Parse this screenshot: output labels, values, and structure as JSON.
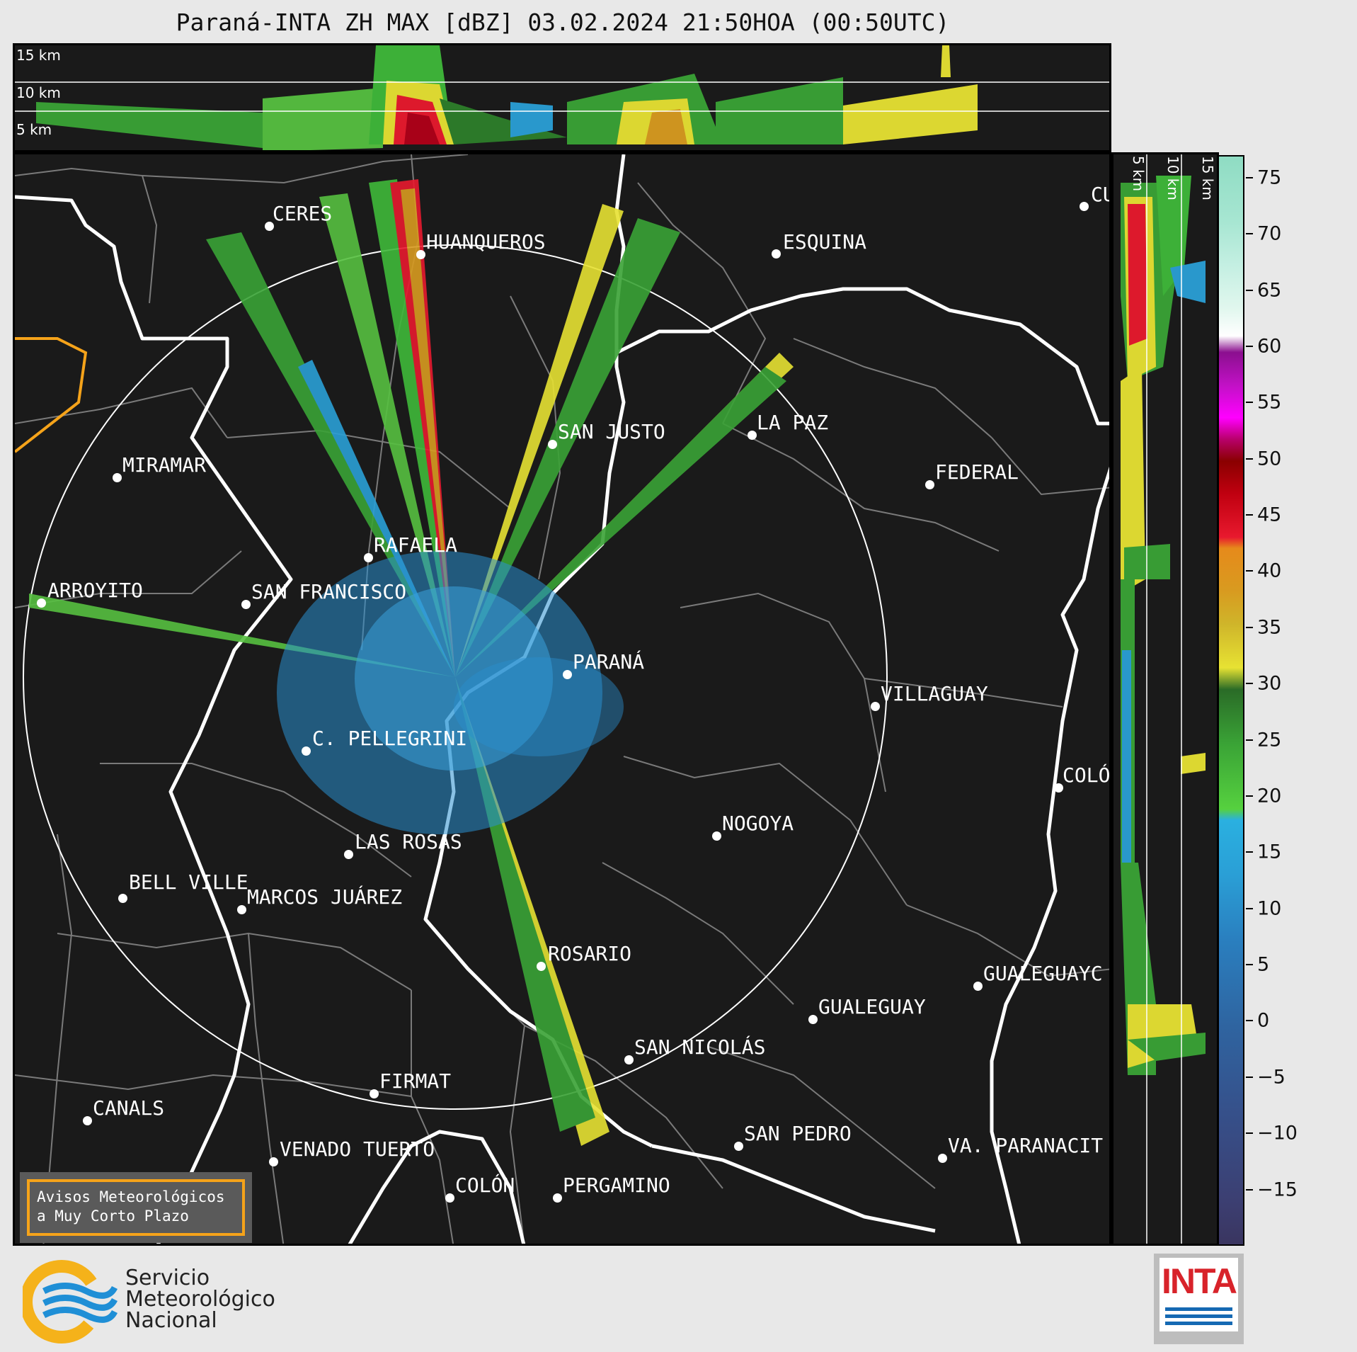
{
  "title": "Paraná-INTA ZH MAX [dBZ] 03.02.2024 21:50HOA (00:50UTC)",
  "height_labels": [
    "15 km",
    "10 km",
    "5 km"
  ],
  "colorbar": {
    "unit": "dBZ",
    "ticks": [
      "75",
      "70",
      "65",
      "60",
      "55",
      "50",
      "45",
      "40",
      "35",
      "30",
      "25",
      "20",
      "15",
      "10",
      "5",
      "0",
      "−5",
      "−10",
      "−15"
    ],
    "tick_values": [
      75,
      70,
      65,
      60,
      55,
      50,
      45,
      40,
      35,
      30,
      25,
      20,
      15,
      10,
      5,
      0,
      -5,
      -10,
      -15
    ],
    "range": [
      -20,
      77
    ]
  },
  "cities": [
    {
      "name": "CERES"
    },
    {
      "name": "HUANQUEROS"
    },
    {
      "name": "ESQUINA"
    },
    {
      "name": "CU"
    },
    {
      "name": "MIRAMAR"
    },
    {
      "name": "SAN JUSTO"
    },
    {
      "name": "LA PAZ"
    },
    {
      "name": "FEDERAL"
    },
    {
      "name": "RAFAELA"
    },
    {
      "name": "ARROYITO"
    },
    {
      "name": "SAN FRANCISCO"
    },
    {
      "name": "PARANÁ"
    },
    {
      "name": "VILLAGUAY"
    },
    {
      "name": "C. PELLEGRINI"
    },
    {
      "name": "COLÓ"
    },
    {
      "name": "NOGOYA"
    },
    {
      "name": "LAS ROSAS"
    },
    {
      "name": "BELL VILLE"
    },
    {
      "name": "MARCOS JUÁREZ"
    },
    {
      "name": "ROSARIO"
    },
    {
      "name": "GUALEGUAYC"
    },
    {
      "name": "GUALEGUAY"
    },
    {
      "name": "SAN NICOLÁS"
    },
    {
      "name": "FIRMAT"
    },
    {
      "name": "CANALS"
    },
    {
      "name": "SAN PEDRO"
    },
    {
      "name": "VENADO TUERTO"
    },
    {
      "name": "VA. PARANACIT"
    },
    {
      "name": "COLÓN"
    },
    {
      "name": "PERGAMINO"
    }
  ],
  "notice": {
    "line1": "Avisos Meteorológicos",
    "line2": "a Muy Corto Plazo"
  },
  "smn": {
    "line1": "Servicio",
    "line2": "Meteorológico",
    "line3": "Nacional"
  },
  "inta": {
    "word": "INTA"
  },
  "colors": {
    "background": "#1a1a1a",
    "outline_white": "#ffffff",
    "border_gray": "#7a7a7a",
    "accent_orange": "#f5a31a"
  }
}
